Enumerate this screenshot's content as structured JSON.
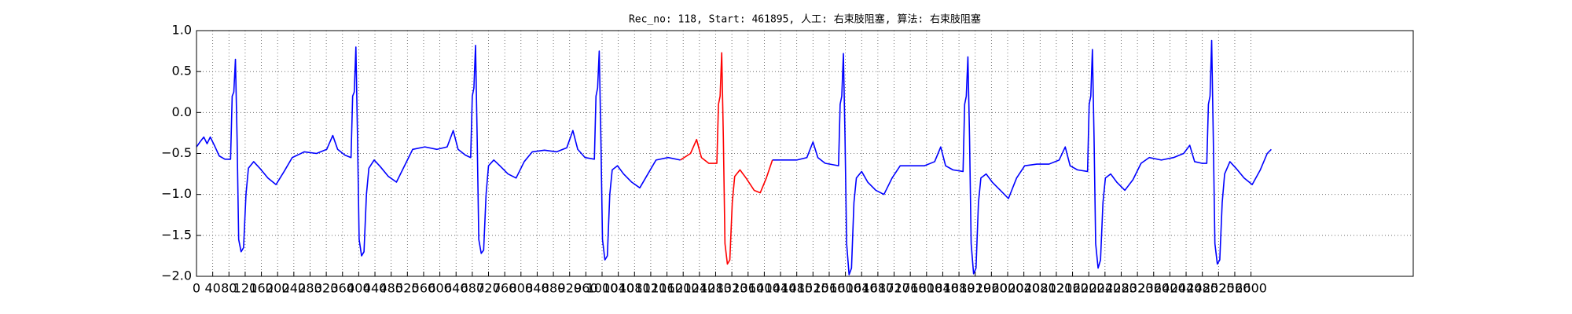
{
  "chart_data": {
    "type": "line",
    "title": "Rec_no: 118, Start: 461895, 人工: 右束肢阻塞, 算法: 右束肢阻塞",
    "xlim": [
      0,
      3000
    ],
    "ylim": [
      -2.0,
      1.0
    ],
    "yticks": [
      {
        "value": -2.0,
        "label": "−2.0"
      },
      {
        "value": -1.5,
        "label": "−1.5"
      },
      {
        "value": -1.0,
        "label": "−1.0"
      },
      {
        "value": -0.5,
        "label": "−0.5"
      },
      {
        "value": 0.0,
        "label": "0.0"
      },
      0.5,
      {
        "value": 1.0,
        "label": "1.0"
      }
    ],
    "xticks": [
      0,
      40,
      80,
      120,
      160,
      200,
      240,
      280,
      320,
      360,
      400,
      440,
      480,
      520,
      560,
      600,
      640,
      680,
      720,
      760,
      800,
      840,
      880,
      920,
      960,
      1000,
      1040,
      1080,
      1120,
      1160,
      1200,
      1240,
      1280,
      1320,
      1360,
      1400,
      1440,
      1480,
      1520,
      1560,
      1600,
      1640,
      1680,
      1720,
      1760,
      1800,
      1840,
      1880,
      1920,
      1960,
      2000,
      2040,
      2080,
      2120,
      2160,
      2200,
      2240,
      2280,
      2320,
      2360,
      2400,
      2440,
      2480,
      2520,
      2560,
      2600
    ],
    "grid": true,
    "series": [
      {
        "color": "#0000ff",
        "x": [
          0,
          10,
          18,
          26,
          34,
          44,
          56,
          70,
          84,
          88,
          92,
          96,
          100,
          104,
          110,
          116,
          122,
          128,
          141,
          156,
          176,
          196,
          216,
          236,
          266,
          296,
          321,
          336,
          348,
          366,
          381,
          385,
          389,
          393,
          397,
          401,
          407,
          413,
          419,
          425,
          438,
          453,
          473,
          493,
          513,
          533,
          563,
          593,
          618,
          633,
          645,
          663,
          676,
          680,
          684,
          688,
          692,
          696,
          702,
          708,
          714,
          720,
          733,
          748,
          768,
          788,
          808,
          828,
          858,
          888,
          913,
          928,
          940,
          958,
          981,
          985,
          989,
          993,
          997,
          1001,
          1007,
          1013,
          1019,
          1025,
          1038,
          1053,
          1073,
          1093,
          1113,
          1133,
          1163,
          1193,
          1300,
          1420,
          1450,
          1480,
          1505,
          1520,
          1532,
          1550,
          1583,
          1587,
          1591,
          1595,
          1599,
          1603,
          1609,
          1615,
          1621,
          1627,
          1640,
          1655,
          1675,
          1695,
          1715,
          1735,
          1765,
          1795,
          1820,
          1835,
          1847,
          1865,
          1890,
          1894,
          1898,
          1902,
          1906,
          1910,
          1916,
          1922,
          1928,
          1934,
          1947,
          1962,
          1982,
          2002,
          2022,
          2042,
          2072,
          2102,
          2127,
          2142,
          2154,
          2172,
          2197,
          2201,
          2205,
          2209,
          2213,
          2217,
          2223,
          2229,
          2235,
          2241,
          2254,
          2269,
          2289,
          2309,
          2329,
          2349,
          2379,
          2409,
          2434,
          2449,
          2461,
          2479,
          2491,
          2495,
          2499,
          2503,
          2507,
          2511,
          2517,
          2523,
          2529,
          2535,
          2548,
          2563,
          2583,
          2603,
          2623,
          2640,
          2650
        ],
        "values": [
          -0.42,
          -0.35,
          -0.3,
          -0.38,
          -0.3,
          -0.4,
          -0.53,
          -0.57,
          -0.57,
          0.2,
          0.25,
          0.65,
          -0.3,
          -1.55,
          -1.7,
          -1.65,
          -1.0,
          -0.68,
          -0.6,
          -0.68,
          -0.8,
          -0.88,
          -0.72,
          -0.55,
          -0.48,
          -0.5,
          -0.45,
          -0.28,
          -0.45,
          -0.52,
          -0.55,
          0.2,
          0.25,
          0.8,
          -0.3,
          -1.55,
          -1.75,
          -1.7,
          -1.0,
          -0.68,
          -0.58,
          -0.66,
          -0.78,
          -0.85,
          -0.65,
          -0.45,
          -0.42,
          -0.45,
          -0.42,
          -0.22,
          -0.45,
          -0.52,
          -0.55,
          0.2,
          0.3,
          0.82,
          -0.3,
          -1.55,
          -1.72,
          -1.68,
          -1.0,
          -0.65,
          -0.58,
          -0.65,
          -0.75,
          -0.8,
          -0.6,
          -0.48,
          -0.46,
          -0.48,
          -0.43,
          -0.22,
          -0.45,
          -0.55,
          -0.57,
          0.2,
          0.3,
          0.75,
          -0.3,
          -1.55,
          -1.8,
          -1.75,
          -1.0,
          -0.7,
          -0.65,
          -0.75,
          -0.85,
          -0.92,
          -0.75,
          -0.58,
          -0.55,
          -0.58,
          null,
          -0.58,
          -0.58,
          -0.58,
          -0.55,
          -0.36,
          -0.55,
          -0.62,
          -0.65,
          0.1,
          0.2,
          0.72,
          -0.3,
          -1.6,
          -1.98,
          -1.9,
          -1.1,
          -0.8,
          -0.72,
          -0.85,
          -0.95,
          -1.0,
          -0.8,
          -0.65,
          -0.65,
          -0.65,
          -0.6,
          -0.42,
          -0.65,
          -0.7,
          -0.72,
          0.1,
          0.2,
          0.68,
          -0.3,
          -1.6,
          -1.97,
          -1.9,
          -1.1,
          -0.8,
          -0.75,
          -0.85,
          -0.95,
          -1.05,
          -0.8,
          -0.65,
          -0.63,
          -0.63,
          -0.58,
          -0.42,
          -0.65,
          -0.7,
          -0.72,
          0.1,
          0.2,
          0.77,
          -0.3,
          -1.6,
          -1.9,
          -1.8,
          -1.1,
          -0.8,
          -0.75,
          -0.85,
          -0.95,
          -0.82,
          -0.62,
          -0.55,
          -0.58,
          -0.55,
          -0.5,
          -0.4,
          -0.6,
          -0.62,
          -0.62,
          0.1,
          0.2,
          0.88,
          -0.3,
          -1.6,
          -1.85,
          -1.8,
          -1.1,
          -0.75,
          -0.6,
          -0.68,
          -0.8,
          -0.88,
          -0.7,
          -0.5,
          -0.45
        ]
      },
      {
        "color": "#ff0000",
        "x": [
          1193,
          1218,
          1233,
          1245,
          1263,
          1283,
          1287,
          1291,
          1295,
          1299,
          1303,
          1309,
          1315,
          1321,
          1327,
          1340,
          1355,
          1375,
          1390,
          1405,
          1420
        ],
        "values": [
          -0.58,
          -0.5,
          -0.33,
          -0.55,
          -0.62,
          -0.62,
          0.1,
          0.2,
          0.73,
          -0.3,
          -1.6,
          -1.85,
          -1.8,
          -1.1,
          -0.78,
          -0.7,
          -0.8,
          -0.95,
          -0.98,
          -0.8,
          -0.58
        ]
      }
    ]
  }
}
